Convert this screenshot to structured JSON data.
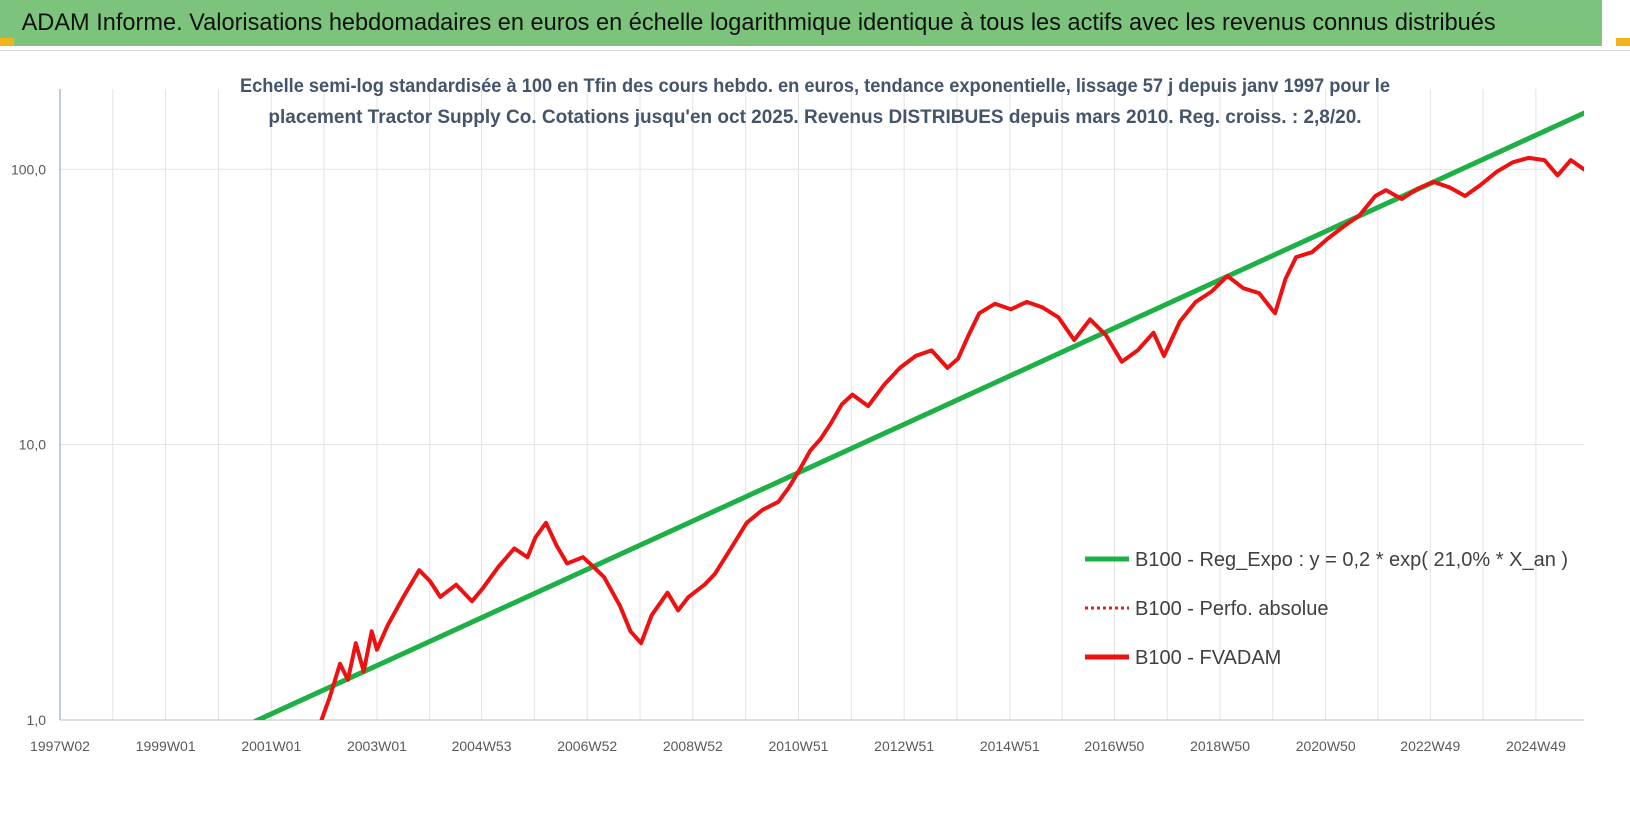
{
  "header": {
    "title": "ADAM Informe. Valorisations hebdomadaires en euros en échelle logarithmique identique à tous les actifs avec les revenus connus distribués"
  },
  "colors": {
    "banner": "#7cc47b",
    "corner_accent": "#f2b21b",
    "regression_line": "#1db046",
    "fvadam_line": "#ee1111",
    "perf_line": "#e02020",
    "grid": "#e3e3e3",
    "axis": "#8ea9db"
  },
  "chart_data": {
    "type": "line",
    "subtitle": [
      "Echelle semi-log standardisée à 100 en Tfin des cours hebdo. en euros, tendance exponentielle, lissage 57 j depuis janv 1997 pour le",
      "placement Tractor Supply Co. Cotations jusqu'en oct 2025. Revenus DISTRIBUES depuis mars 2010. Reg. croiss. : 2,8/20."
    ],
    "y_scale": "log",
    "ylim": [
      1,
      180
    ],
    "y_ticks": [
      {
        "value": 1,
        "label": "1,0"
      },
      {
        "value": 10,
        "label": "10,0"
      },
      {
        "value": 100,
        "label": "100,0"
      }
    ],
    "xlim": [
      1997.0,
      2025.85
    ],
    "x_ticks": [
      {
        "value": 1997.0,
        "label": "1997W02"
      },
      {
        "value": 1999.0,
        "label": "1999W01"
      },
      {
        "value": 2001.0,
        "label": "2001W01"
      },
      {
        "value": 2003.0,
        "label": "2003W01"
      },
      {
        "value": 2004.98,
        "label": "2004W53"
      },
      {
        "value": 2006.98,
        "label": "2006W52"
      },
      {
        "value": 2008.98,
        "label": "2008W52"
      },
      {
        "value": 2010.98,
        "label": "2010W51"
      },
      {
        "value": 2012.98,
        "label": "2012W51"
      },
      {
        "value": 2014.98,
        "label": "2014W51"
      },
      {
        "value": 2016.96,
        "label": "2016W50"
      },
      {
        "value": 2018.96,
        "label": "2018W50"
      },
      {
        "value": 2020.96,
        "label": "2020W50"
      },
      {
        "value": 2022.94,
        "label": "2022W49"
      },
      {
        "value": 2024.94,
        "label": "2024W49"
      }
    ],
    "x_grid": [
      1997.0,
      1998.0,
      1999.0,
      2000.0,
      2001.0,
      2002.0,
      2003.0,
      2004.0,
      2004.98,
      2005.98,
      2006.98,
      2007.98,
      2008.98,
      2009.98,
      2010.98,
      2011.98,
      2012.98,
      2013.98,
      2014.98,
      2015.97,
      2016.96,
      2017.96,
      2018.96,
      2019.96,
      2020.96,
      2021.95,
      2022.94,
      2023.94,
      2024.94
    ],
    "legend_position": "right",
    "series": [
      {
        "name": "B100 - Reg_Expo : y = 0,2 * exp( 21,0% *  X_an )",
        "style": "solid",
        "color": "#1db046",
        "x": [
          2000.7,
          2025.85
        ],
        "y": [
          0.99,
          160
        ]
      },
      {
        "name": "B100 - Perfo. absolue",
        "style": "dotted",
        "color": "#e02020",
        "x": [],
        "y": []
      },
      {
        "name": "B100 - FVADAM",
        "style": "solid",
        "color": "#ee1111",
        "x": [
          2001.95,
          2002.1,
          2002.3,
          2002.45,
          2002.6,
          2002.75,
          2002.9,
          2003.0,
          2003.2,
          2003.5,
          2003.8,
          2004.0,
          2004.2,
          2004.5,
          2004.8,
          2005.0,
          2005.3,
          2005.6,
          2005.85,
          2006.0,
          2006.2,
          2006.4,
          2006.6,
          2006.9,
          2007.1,
          2007.3,
          2007.6,
          2007.8,
          2008.0,
          2008.2,
          2008.5,
          2008.7,
          2008.9,
          2009.2,
          2009.4,
          2009.7,
          2010.0,
          2010.3,
          2010.6,
          2010.8,
          2011.0,
          2011.2,
          2011.4,
          2011.6,
          2011.8,
          2012.0,
          2012.3,
          2012.6,
          2012.9,
          2013.2,
          2013.5,
          2013.8,
          2014.0,
          2014.2,
          2014.4,
          2014.7,
          2015.0,
          2015.3,
          2015.6,
          2015.9,
          2016.2,
          2016.5,
          2016.8,
          2017.1,
          2017.4,
          2017.7,
          2017.9,
          2018.2,
          2018.5,
          2018.8,
          2019.1,
          2019.4,
          2019.7,
          2020.0,
          2020.2,
          2020.4,
          2020.7,
          2021.0,
          2021.3,
          2021.6,
          2021.9,
          2022.1,
          2022.4,
          2022.7,
          2023.0,
          2023.3,
          2023.6,
          2023.9,
          2024.2,
          2024.5,
          2024.8,
          2025.1,
          2025.35,
          2025.6,
          2025.85
        ],
        "y": [
          1.0,
          1.2,
          1.6,
          1.4,
          1.9,
          1.5,
          2.1,
          1.8,
          2.2,
          2.8,
          3.5,
          3.2,
          2.8,
          3.1,
          2.7,
          3.0,
          3.6,
          4.2,
          3.9,
          4.6,
          5.2,
          4.3,
          3.7,
          3.9,
          3.6,
          3.3,
          2.6,
          2.1,
          1.9,
          2.4,
          2.9,
          2.5,
          2.8,
          3.1,
          3.4,
          4.2,
          5.2,
          5.8,
          6.2,
          7.0,
          8.1,
          9.5,
          10.5,
          12.0,
          14.0,
          15.2,
          13.8,
          16.5,
          19.0,
          21.0,
          22.0,
          19.0,
          20.5,
          25.0,
          30.0,
          32.5,
          31.0,
          33.0,
          31.5,
          29.0,
          24.0,
          28.5,
          25.0,
          20.0,
          22.0,
          25.5,
          21.0,
          28.0,
          33.0,
          36.0,
          41.0,
          37.0,
          35.5,
          30.0,
          40.0,
          48.0,
          50.0,
          56.0,
          62.0,
          68.0,
          80.0,
          84.0,
          78.0,
          85.0,
          90.0,
          86.0,
          80.0,
          88.0,
          98.0,
          106.0,
          110.0,
          108.0,
          95.0,
          108.0,
          100.0
        ]
      }
    ]
  }
}
